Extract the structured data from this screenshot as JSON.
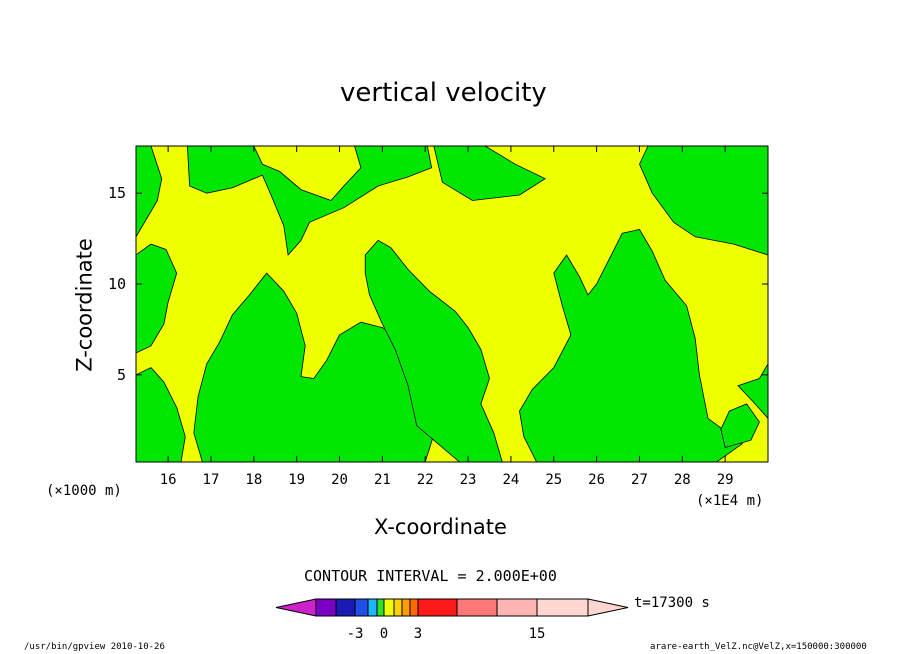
{
  "chart_data": {
    "type": "heatmap",
    "title": "vertical velocity",
    "xlabel": "X-coordinate",
    "ylabel": "Z-coordinate",
    "x_unit_left": "(×1000 m)",
    "x_unit_right": "(×1E4 m)",
    "xlim": [
      15.25,
      30.0
    ],
    "ylim": [
      0.2,
      17.6
    ],
    "x_ticks": [
      "16",
      "17",
      "18",
      "19",
      "20",
      "21",
      "22",
      "23",
      "24",
      "25",
      "26",
      "27",
      "28",
      "29"
    ],
    "y_ticks": [
      "5",
      "10",
      "15"
    ],
    "contour_interval": "CONTOUR INTERVAL = 2.000E+00",
    "time_label": "t=17300 s",
    "colorbar": {
      "labels": [
        "-3",
        "0",
        "3",
        "15"
      ],
      "colors": [
        "#cc22cc",
        "#7a00c4",
        "#1a1ab4",
        "#1f4fe6",
        "#1fb4ff",
        "#30e030",
        "#f0ff00",
        "#ffd000",
        "#ff9c00",
        "#ff6a00",
        "#ff1a1a",
        "#ff7878",
        "#ffb4b4",
        "#ffd6d0"
      ]
    },
    "field_colors": {
      "positive": "#f0ff00",
      "negative": "#00e600"
    },
    "grid": false
  },
  "footer": {
    "left": "/usr/bin/gpview   2010-10-26",
    "right": "arare-earth_VelZ.nc@VelZ,x=150000:300000"
  }
}
